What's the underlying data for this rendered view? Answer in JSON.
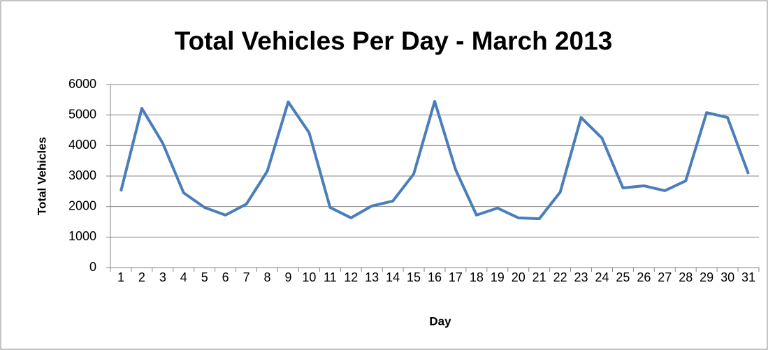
{
  "chart_data": {
    "type": "line",
    "title": "Total Vehicles Per Day - March 2013",
    "x_label": "Day",
    "y_label": "Total Vehicles",
    "categories": [
      "1",
      "2",
      "3",
      "4",
      "5",
      "6",
      "7",
      "8",
      "9",
      "10",
      "11",
      "12",
      "13",
      "14",
      "15",
      "16",
      "17",
      "18",
      "19",
      "20",
      "21",
      "22",
      "23",
      "24",
      "25",
      "26",
      "27",
      "28",
      "29",
      "30",
      "31"
    ],
    "series": [
      {
        "name": "Total Vehicles",
        "color": "#4a7ebb",
        "values": [
          2500,
          5220,
          4080,
          2450,
          1970,
          1720,
          2080,
          3160,
          5430,
          4420,
          1970,
          1630,
          2020,
          2180,
          3070,
          5450,
          3210,
          1720,
          1950,
          1630,
          1600,
          2470,
          4920,
          4240,
          2610,
          2680,
          2520,
          2840,
          5080,
          4920,
          3070
        ]
      }
    ],
    "ylim": [
      0,
      6000
    ],
    "yticks": [
      0,
      1000,
      2000,
      3000,
      4000,
      5000,
      6000
    ],
    "grid": true
  }
}
